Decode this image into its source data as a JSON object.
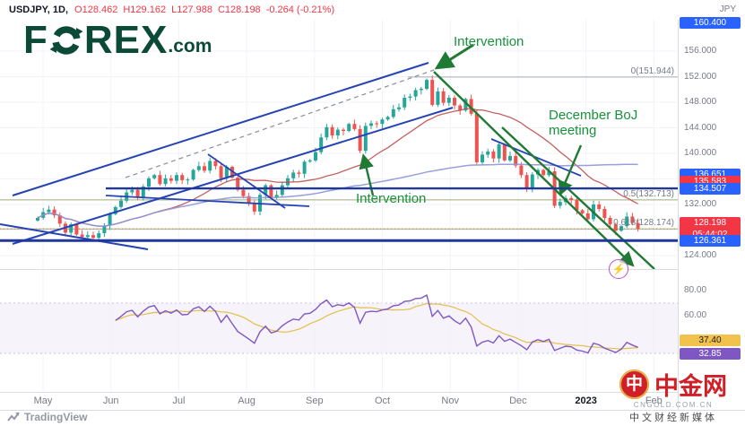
{
  "header": {
    "symbol": "USDJPY, 1D,",
    "open": "O128.462",
    "high": "H129.162",
    "low": "L127.988",
    "close": "C128.198",
    "change": "-0.264 (-0.21%)",
    "currency": "JPY"
  },
  "logo": {
    "part1": "F",
    "part2": "REX",
    "suffix": ".com"
  },
  "annotations": {
    "intervention_top": "Intervention",
    "intervention_mid": "Intervention",
    "boj": "December BoJ meeting",
    "fib0": "0(151.944)",
    "fib05": "0.5(132.713)",
    "fib0618": "0.618(128.174)"
  },
  "price_axis": {
    "ticks": [
      {
        "label": "156.000",
        "price": 156
      },
      {
        "label": "152.000",
        "price": 152
      },
      {
        "label": "148.000",
        "price": 148
      },
      {
        "label": "144.000",
        "price": 144
      },
      {
        "label": "140.000",
        "price": 140
      },
      {
        "label": "132.000",
        "price": 132
      },
      {
        "label": "124.000",
        "price": 124
      }
    ],
    "badges": [
      {
        "label": "160.400",
        "price": 160.4,
        "color": "#2962ff"
      },
      {
        "label": "136.651",
        "price": 136.651,
        "color": "#2962ff"
      },
      {
        "label": "135.583",
        "price": 135.583,
        "color": "#f23645"
      },
      {
        "label": "134.507",
        "price": 134.507,
        "color": "#2962ff"
      },
      {
        "label": "128.198",
        "sub": "05:44:02",
        "price": 128.198,
        "color": "#f23645"
      },
      {
        "label": "126.361",
        "price": 126.361,
        "color": "#2962ff"
      }
    ]
  },
  "time_axis": {
    "labels": [
      "May",
      "Jun",
      "Jul",
      "Aug",
      "Sep",
      "Oct",
      "Nov",
      "Dec",
      "2023",
      "Feb"
    ]
  },
  "indicator_axis": {
    "ticks": [
      {
        "label": "80.00",
        "value": 80
      },
      {
        "label": "60.00",
        "value": 60
      }
    ],
    "badges": [
      {
        "label": "37.40",
        "value": 37.4,
        "bg": "#f2c24e",
        "fg": "#1c1c1c"
      },
      {
        "label": "32.85",
        "value": 32.85,
        "bg": "#7e57c2",
        "fg": "#ffffff"
      }
    ]
  },
  "footer": {
    "tradingview": "TradingView"
  },
  "watermark": {
    "logo_glyph": "中",
    "title": "中金网",
    "domain": "CNGOLD.COM.CN",
    "tagline": "中文财经新媒体"
  },
  "chart_data": {
    "type": "candlestick",
    "symbol": "USDJPY",
    "interval": "1D",
    "title": "USDJPY daily — intervention and December BoJ meeting annotations",
    "x_axis_labels": [
      "May",
      "Jun",
      "Jul",
      "Aug",
      "Sep",
      "Oct",
      "Nov",
      "Dec",
      "2023",
      "Feb"
    ],
    "y_range": [
      124,
      160.4
    ],
    "closes": [
      129.9,
      130.8,
      131.2,
      130.3,
      129.0,
      127.6,
      128.9,
      127.3,
      126.9,
      127.2,
      126.8,
      127.5,
      128.7,
      130.5,
      131.6,
      132.6,
      133.9,
      134.3,
      133.2,
      134.8,
      136.1,
      136.6,
      135.2,
      136.1,
      135.7,
      136.6,
      135.8,
      135.9,
      137.4,
      138.0,
      137.3,
      138.8,
      138.0,
      136.1,
      137.9,
      136.2,
      134.3,
      133.3,
      132.2,
      130.9,
      133.5,
      135.0,
      133.1,
      133.5,
      135.0,
      136.1,
      137.0,
      136.8,
      138.7,
      138.9,
      140.2,
      142.5,
      144.1,
      142.8,
      143.7,
      143.5,
      144.6,
      143.8,
      140.4,
      144.3,
      144.7,
      144.6,
      145.3,
      145.7,
      146.9,
      147.2,
      148.7,
      148.9,
      149.9,
      150.1,
      151.5,
      147.6,
      149.7,
      147.9,
      148.7,
      147.5,
      146.7,
      148.5,
      146.2,
      138.6,
      139.8,
      140.3,
      139.2,
      141.4,
      138.9,
      139.6,
      138.1,
      136.6,
      134.5,
      136.7,
      137.4,
      136.6,
      137.2,
      131.8,
      132.4,
      133.0,
      132.7,
      131.1,
      130.6,
      129.7,
      132.0,
      131.3,
      129.9,
      128.9,
      127.9,
      128.6,
      130.1,
      129.1,
      128.198
    ],
    "last": {
      "open": 128.462,
      "high": 129.162,
      "low": 127.988,
      "close": 128.198,
      "change": -0.264,
      "change_pct_label": "-0.21%"
    },
    "key_levels": {
      "fib_0": 151.944,
      "fib_0_5": 132.713,
      "fib_0_618": 128.174,
      "resistance": 134.507,
      "support": 126.361,
      "upper_level": 160.4,
      "ma_badges": [
        136.651,
        135.583
      ]
    },
    "indicator": {
      "type": "rsi-line",
      "levels": [
        80,
        60
      ],
      "band": [
        30,
        70
      ],
      "current_ma": 37.4,
      "current": 32.85
    }
  }
}
